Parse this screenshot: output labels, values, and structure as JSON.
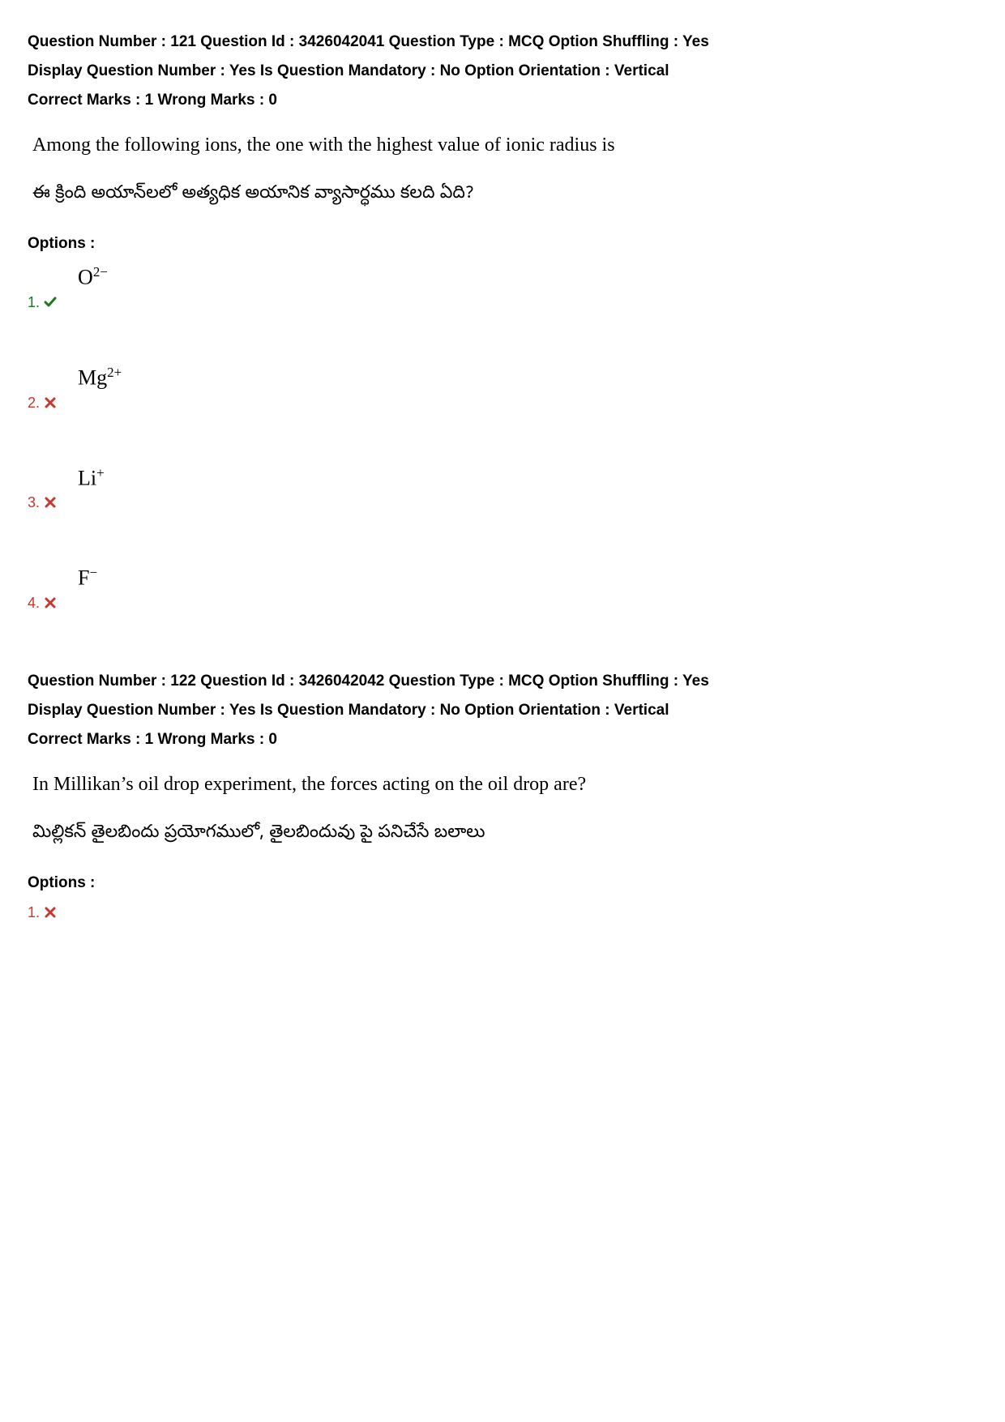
{
  "questions": [
    {
      "meta": {
        "l1_qnum_label": "Question Number :",
        "l1_qnum_val": "121",
        "l1_qid_label": "Question Id :",
        "l1_qid_val": "3426042041",
        "l1_qtype_label": "Question Type :",
        "l1_qtype_val": "MCQ",
        "l1_shuf_label": "Option Shuffling :",
        "l1_shuf_val": "Yes",
        "l2_disp_label": "Display Question Number :",
        "l2_disp_val": "Yes",
        "l2_mand_label": "Is Question Mandatory :",
        "l2_mand_val": "No",
        "l2_orient_label": "Option Orientation :",
        "l2_orient_val": "Vertical",
        "l3_cmarks_label": "Correct Marks :",
        "l3_cmarks_val": "1",
        "l3_wmarks_label": "Wrong Marks :",
        "l3_wmarks_val": "0"
      },
      "question_en": "Among the following ions, the one with the highest value of ionic radius is",
      "question_te": "ఈ క్రింది అయాన్‌లలో అత్యధిక అయానిక వ్యాసార్ధము కలది ఏది?",
      "options_label": "Options :",
      "options": [
        {
          "num": "1.",
          "status": "correct",
          "base": "O",
          "sup": "2−"
        },
        {
          "num": "2.",
          "status": "wrong",
          "base": "Mg",
          "sup": "2+"
        },
        {
          "num": "3.",
          "status": "wrong",
          "base": "Li",
          "sup": "+"
        },
        {
          "num": "4.",
          "status": "wrong",
          "base": "F",
          "sup": "−"
        }
      ]
    },
    {
      "meta": {
        "l1_qnum_label": "Question Number :",
        "l1_qnum_val": "122",
        "l1_qid_label": "Question Id :",
        "l1_qid_val": "3426042042",
        "l1_qtype_label": "Question Type :",
        "l1_qtype_val": "MCQ",
        "l1_shuf_label": "Option Shuffling :",
        "l1_shuf_val": "Yes",
        "l2_disp_label": "Display Question Number :",
        "l2_disp_val": "Yes",
        "l2_mand_label": "Is Question Mandatory :",
        "l2_mand_val": "No",
        "l2_orient_label": "Option Orientation :",
        "l2_orient_val": "Vertical",
        "l3_cmarks_label": "Correct Marks :",
        "l3_cmarks_val": "1",
        "l3_wmarks_label": "Wrong Marks :",
        "l3_wmarks_val": "0"
      },
      "question_en": "In Millikan’s oil drop experiment, the forces acting on the oil drop are?",
      "question_te": "మిల్లికన్ తైలబిందు ప్రయోగములో, తైలబిందువు పై పనిచేసే బలాలు",
      "options_label": "Options :",
      "options": [
        {
          "num": "1.",
          "status": "wrong",
          "base": "",
          "sup": ""
        }
      ]
    }
  ],
  "colors": {
    "correct": "#1a7a1a",
    "wrong": "#c8372d",
    "text": "#000000",
    "bg": "#ffffff"
  }
}
